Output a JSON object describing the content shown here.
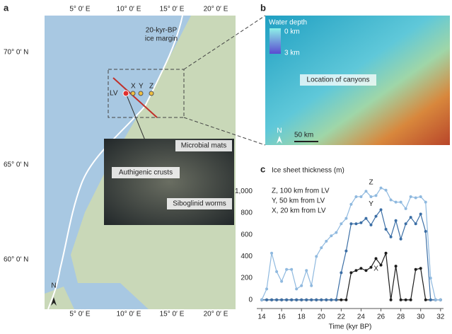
{
  "map": {
    "letter": "a",
    "lon_labels": [
      "5° 0′ E",
      "10° 0′ E",
      "15° 0′ E",
      "20° 0′ E"
    ],
    "lat_labels": [
      "70° 0′ N",
      "65° 0′ N",
      "60° 0′ N"
    ],
    "ice_margin": [
      "20-kyr-BP",
      "ice margin"
    ],
    "sites": [
      "LV",
      "X",
      "Y",
      "Z"
    ],
    "north": "N",
    "photo_labels": [
      "Microbial mats",
      "Authigenic crusts",
      "Siboglinid worms"
    ]
  },
  "depth_map": {
    "letter": "b",
    "legend_title": "Water depth",
    "legend_labels": [
      "0 km",
      "3 km"
    ],
    "annotation": "Location of canyons",
    "scale": "50 km",
    "north": "N"
  },
  "chart_data": {
    "type": "line",
    "letter": "c",
    "title": "Ice sheet thickness (m)",
    "x_label": "Time (kyr BP)",
    "x": [
      14,
      14.5,
      15,
      15.5,
      16,
      16.5,
      17,
      17.5,
      18,
      18.5,
      19,
      19.5,
      20,
      20.5,
      21,
      21.5,
      22,
      22.5,
      23,
      23.5,
      24,
      24.5,
      25,
      25.5,
      26,
      26.5,
      27,
      27.5,
      28,
      28.5,
      29,
      29.5,
      30,
      30.5,
      31,
      31.5,
      32
    ],
    "series": [
      {
        "name": "X,  20 km from LV",
        "label": "X",
        "color": "#1c1c1c",
        "values": [
          0,
          0,
          0,
          0,
          0,
          0,
          0,
          0,
          0,
          0,
          0,
          0,
          0,
          0,
          0,
          0,
          0,
          0,
          250,
          270,
          290,
          270,
          300,
          380,
          320,
          430,
          0,
          310,
          0,
          0,
          0,
          280,
          290,
          0,
          0,
          0,
          0
        ]
      },
      {
        "name": "Y,  50 km from LV",
        "label": "Y",
        "color": "#3b6ea5",
        "values": [
          0,
          0,
          0,
          0,
          0,
          0,
          0,
          0,
          0,
          0,
          0,
          0,
          0,
          0,
          0,
          0,
          250,
          450,
          700,
          700,
          710,
          750,
          690,
          770,
          830,
          650,
          580,
          730,
          560,
          700,
          760,
          700,
          790,
          630,
          0,
          0,
          0
        ]
      },
      {
        "name": "Z,  100 km from LV",
        "label": "Z",
        "color": "#8fb9df",
        "values": [
          0,
          100,
          430,
          260,
          170,
          280,
          280,
          100,
          130,
          270,
          130,
          400,
          480,
          540,
          590,
          620,
          700,
          750,
          880,
          950,
          950,
          1000,
          950,
          960,
          1030,
          1010,
          920,
          900,
          900,
          840,
          950,
          940,
          950,
          900,
          200,
          0,
          0
        ]
      }
    ],
    "xlim": [
      13.5,
      32.3
    ],
    "ylim": [
      -80,
      1080
    ],
    "xticks": [
      14,
      16,
      18,
      20,
      22,
      24,
      26,
      28,
      30,
      32
    ],
    "yticks": [
      0,
      200,
      400,
      600,
      800,
      {
        "value": 1000,
        "label": "1,000"
      }
    ],
    "grid": false
  }
}
